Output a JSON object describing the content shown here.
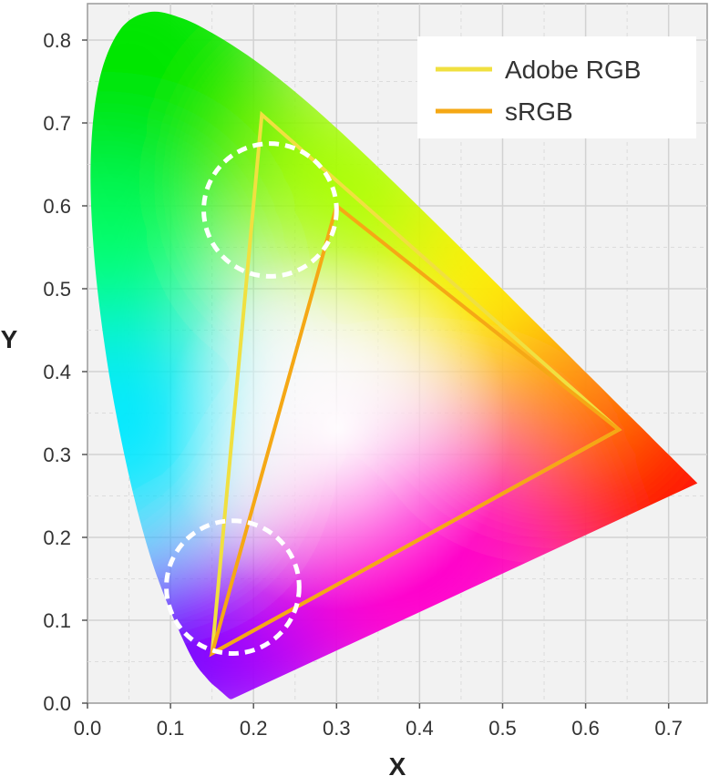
{
  "chart_data": {
    "type": "line",
    "xlabel": "X",
    "ylabel": "Y",
    "xlim": [
      0,
      0.74
    ],
    "ylim": [
      0,
      0.84
    ],
    "x_ticks": [
      0.0,
      0.1,
      0.2,
      0.3,
      0.4,
      0.5,
      0.6,
      0.7
    ],
    "y_ticks": [
      0.0,
      0.1,
      0.2,
      0.3,
      0.4,
      0.5,
      0.6,
      0.7,
      0.8
    ],
    "x_tick_labels": [
      "0.0",
      "0.1",
      "0.2",
      "0.3",
      "0.4",
      "0.5",
      "0.6",
      "0.7"
    ],
    "y_tick_labels": [
      "0.0",
      "0.1",
      "0.2",
      "0.3",
      "0.4",
      "0.5",
      "0.6",
      "0.7",
      "0.8"
    ],
    "grid": true,
    "legend_position": "top-right",
    "series": [
      {
        "name": "Adobe RGB",
        "color": "#f0e040",
        "points": [
          [
            0.64,
            0.33
          ],
          [
            0.21,
            0.71
          ],
          [
            0.15,
            0.06
          ]
        ]
      },
      {
        "name": "sRGB",
        "color": "#f5a815",
        "points": [
          [
            0.64,
            0.33
          ],
          [
            0.3,
            0.6
          ],
          [
            0.15,
            0.06
          ]
        ]
      }
    ],
    "annotations": [
      {
        "shape": "dashed-circle",
        "color": "#ffffff",
        "center": [
          0.22,
          0.595
        ],
        "radius_x": 0.08
      },
      {
        "shape": "dashed-circle",
        "color": "#ffffff",
        "center": [
          0.175,
          0.14
        ],
        "radius_x": 0.08
      }
    ],
    "spectral_locus": [
      [
        0.1741,
        0.005
      ],
      [
        0.1738,
        0.0049
      ],
      [
        0.1733,
        0.0048
      ],
      [
        0.1726,
        0.0048
      ],
      [
        0.1714,
        0.0051
      ],
      [
        0.1689,
        0.0069
      ],
      [
        0.1644,
        0.0109
      ],
      [
        0.1566,
        0.0177
      ],
      [
        0.144,
        0.0297
      ],
      [
        0.1241,
        0.0578
      ],
      [
        0.0913,
        0.1327
      ],
      [
        0.0687,
        0.2007
      ],
      [
        0.0454,
        0.295
      ],
      [
        0.0235,
        0.4127
      ],
      [
        0.0082,
        0.5384
      ],
      [
        0.0039,
        0.6548
      ],
      [
        0.0139,
        0.7502
      ],
      [
        0.0389,
        0.812
      ],
      [
        0.0743,
        0.8338
      ],
      [
        0.1142,
        0.8262
      ],
      [
        0.1547,
        0.8059
      ],
      [
        0.1929,
        0.7816
      ],
      [
        0.2296,
        0.7543
      ],
      [
        0.2658,
        0.7243
      ],
      [
        0.3016,
        0.6923
      ],
      [
        0.3373,
        0.6589
      ],
      [
        0.3731,
        0.6245
      ],
      [
        0.4087,
        0.5896
      ],
      [
        0.4441,
        0.5547
      ],
      [
        0.4788,
        0.5202
      ],
      [
        0.5125,
        0.4866
      ],
      [
        0.5448,
        0.4544
      ],
      [
        0.5752,
        0.4242
      ],
      [
        0.6029,
        0.3965
      ],
      [
        0.627,
        0.3725
      ],
      [
        0.6482,
        0.3514
      ],
      [
        0.6658,
        0.334
      ],
      [
        0.6801,
        0.3197
      ],
      [
        0.6915,
        0.3083
      ],
      [
        0.7006,
        0.2993
      ],
      [
        0.7079,
        0.292
      ],
      [
        0.714,
        0.2859
      ],
      [
        0.719,
        0.2809
      ],
      [
        0.723,
        0.277
      ],
      [
        0.726,
        0.274
      ],
      [
        0.7283,
        0.2717
      ],
      [
        0.73,
        0.27
      ],
      [
        0.7347,
        0.2653
      ]
    ]
  }
}
